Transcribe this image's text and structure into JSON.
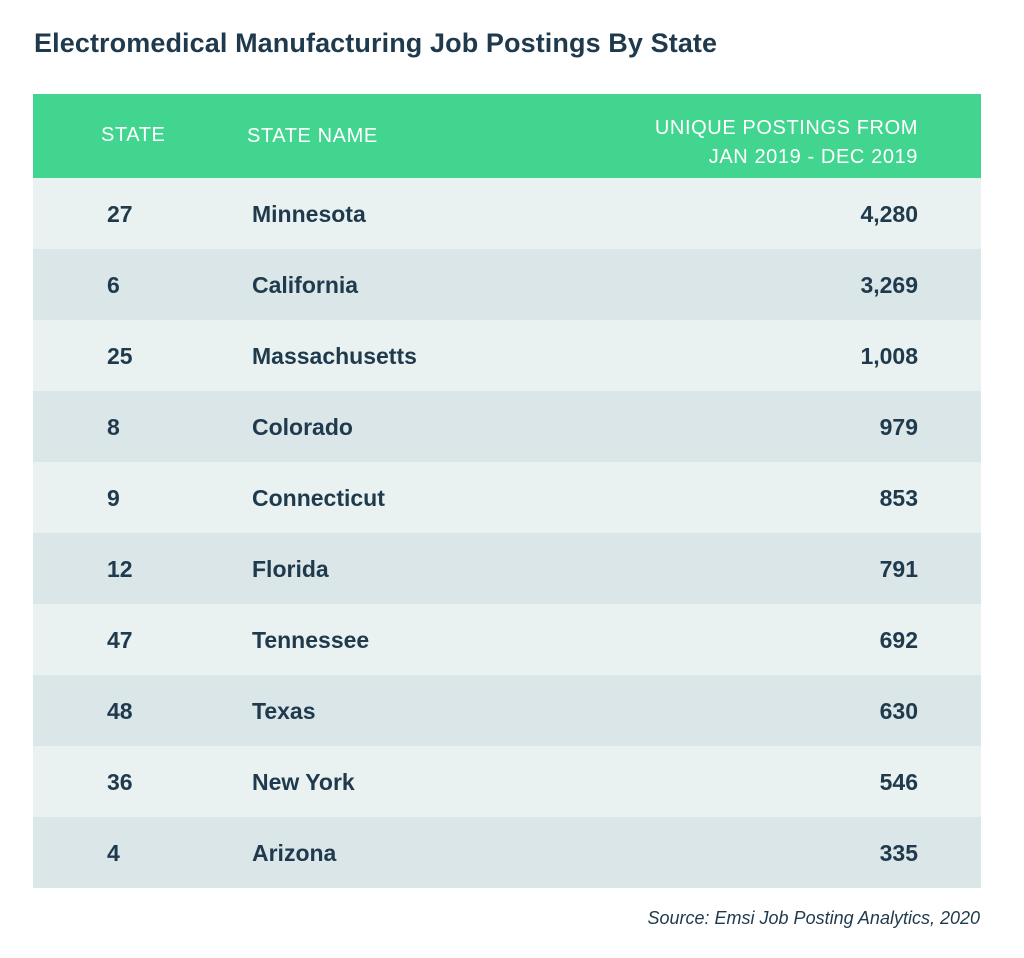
{
  "chart_data": {
    "type": "table",
    "title": "Electromedical Manufacturing Job Postings By State",
    "columns": [
      "STATE",
      "STATE NAME",
      "UNIQUE POSTINGS FROM",
      "JAN 2019 - DEC 2019"
    ],
    "rows": [
      {
        "state": "27",
        "name": "Minnesota",
        "postings": "4,280"
      },
      {
        "state": "6",
        "name": "California",
        "postings": "3,269"
      },
      {
        "state": "25",
        "name": "Massachusetts",
        "postings": "1,008"
      },
      {
        "state": "8",
        "name": "Colorado",
        "postings": "979"
      },
      {
        "state": "9",
        "name": "Connecticut",
        "postings": "853"
      },
      {
        "state": "12",
        "name": "Florida",
        "postings": "791"
      },
      {
        "state": "47",
        "name": "Tennessee",
        "postings": "692"
      },
      {
        "state": "48",
        "name": "Texas",
        "postings": "630"
      },
      {
        "state": "36",
        "name": "New York",
        "postings": "546"
      },
      {
        "state": "4",
        "name": "Arizona",
        "postings": "335"
      }
    ],
    "source": "Source: Emsi Job Posting Analytics, 2020"
  },
  "colors": {
    "header_bg": "#41d590",
    "header_text": "#ffffff",
    "row_light": "#e9f1f1",
    "row_dark": "#dbe6e9",
    "text": "#1f3a4d"
  }
}
